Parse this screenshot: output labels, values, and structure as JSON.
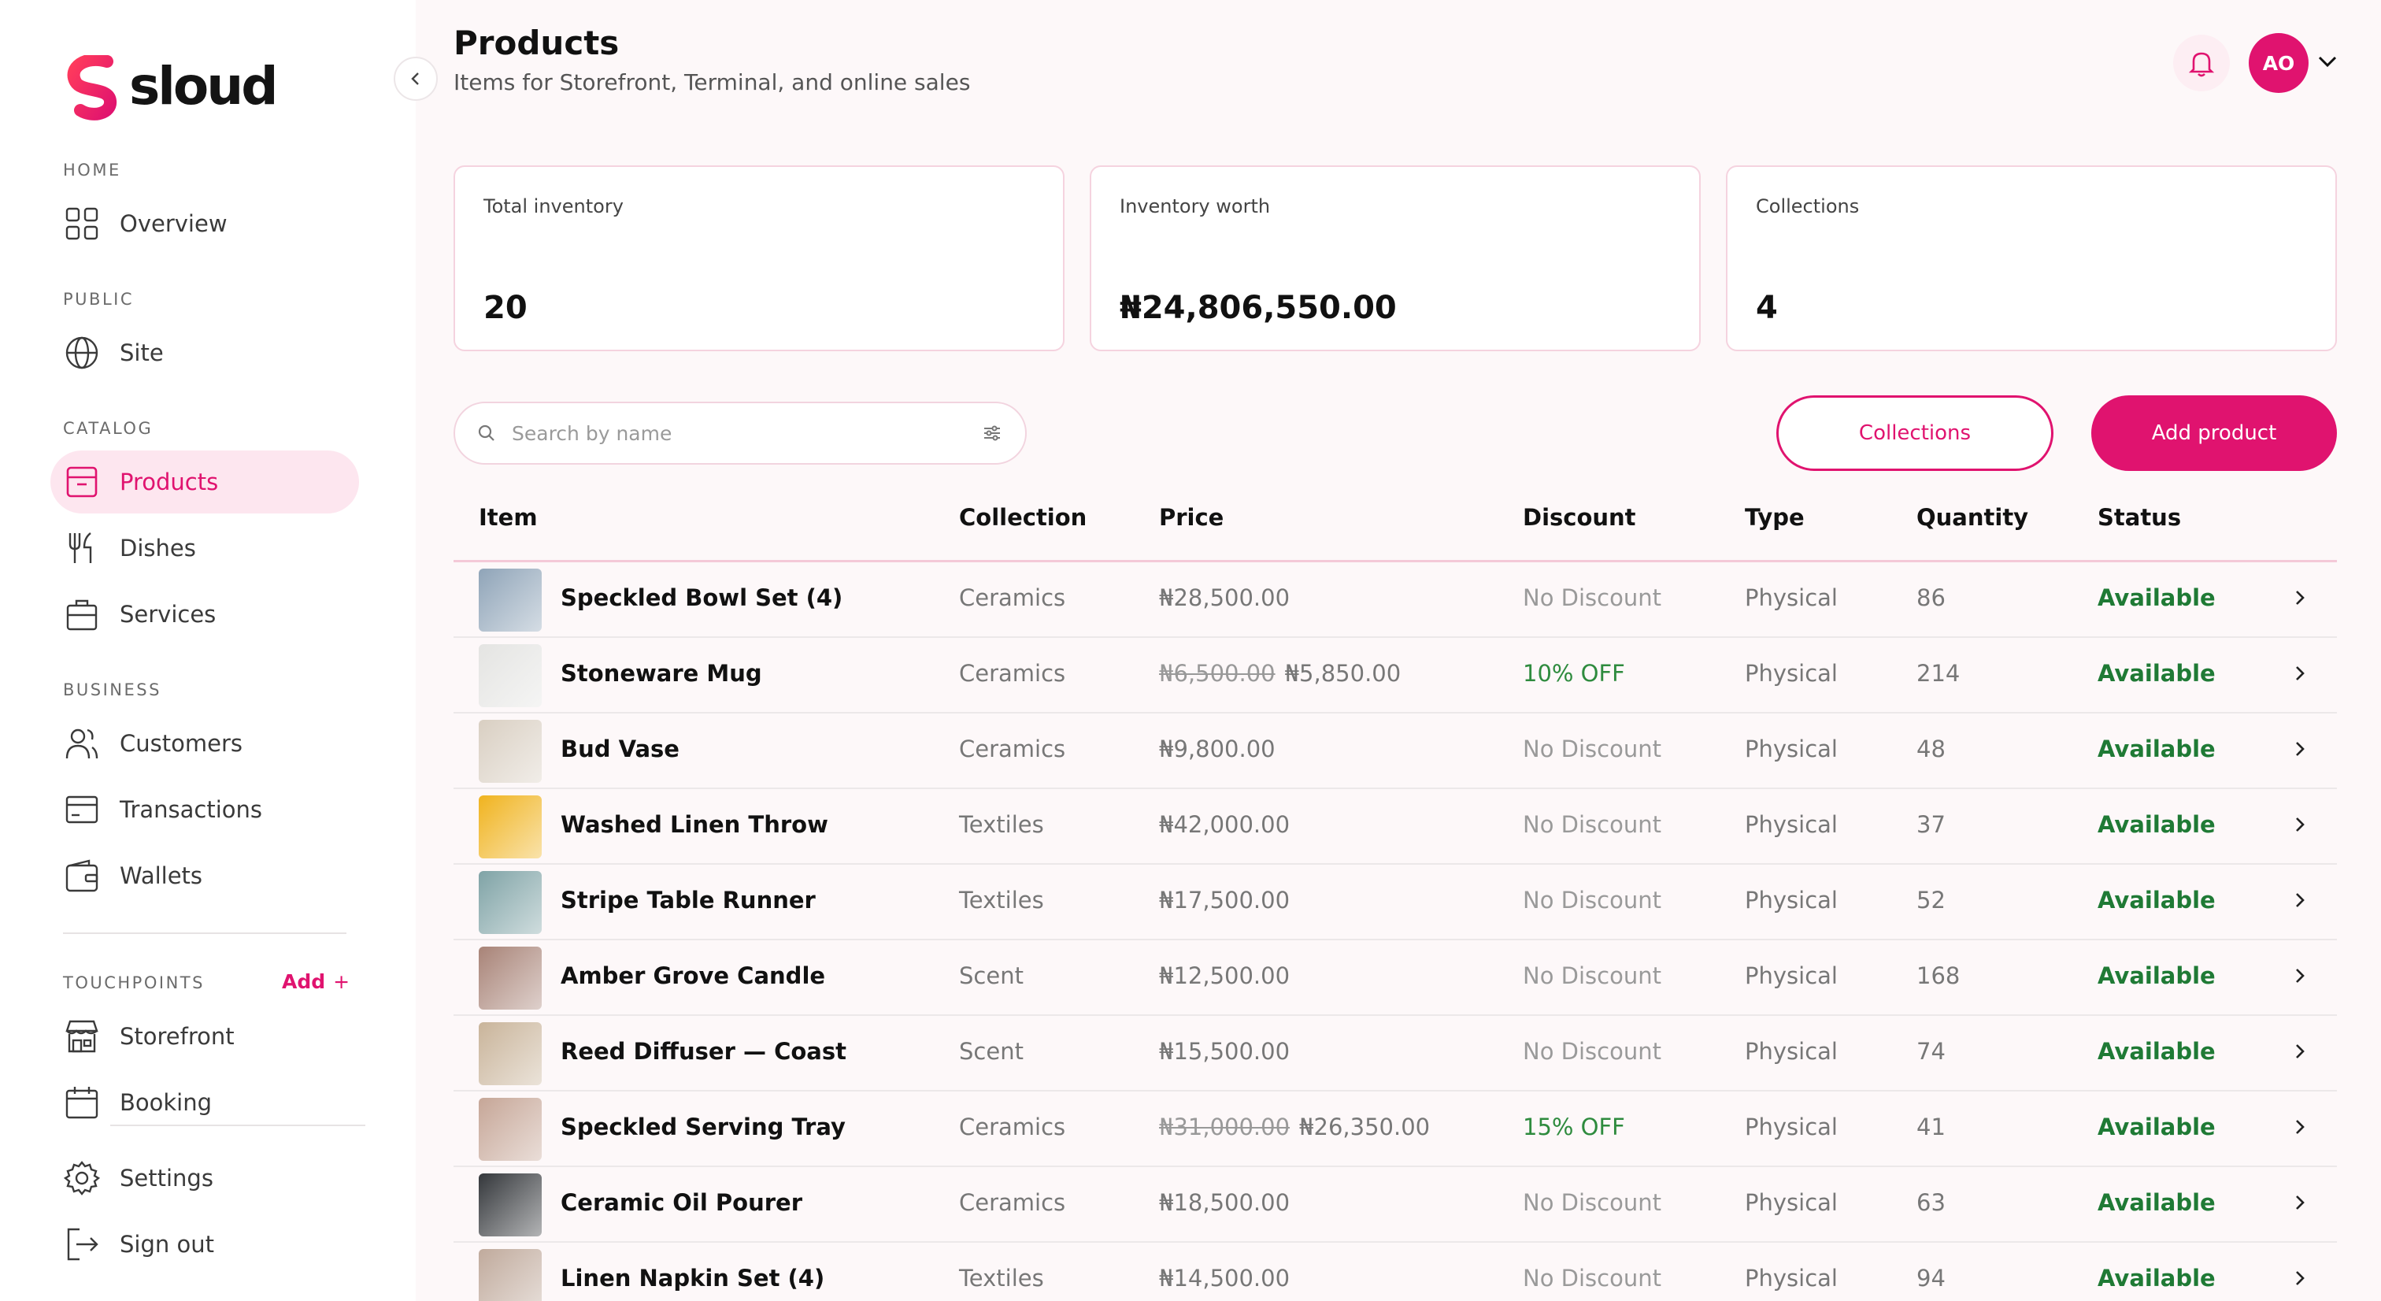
{
  "brand": {
    "name": "sloud",
    "color": "#e0136f"
  },
  "sidebar": {
    "sections": [
      {
        "label": "HOME"
      },
      {
        "label": "PUBLIC"
      },
      {
        "label": "CATALOG"
      },
      {
        "label": "BUSINESS"
      },
      {
        "label": "TOUCHPOINTS",
        "add_label": "Add"
      }
    ],
    "items": [
      {
        "label": "Overview",
        "icon": "grid-icon"
      },
      {
        "label": "Site",
        "icon": "globe-icon"
      },
      {
        "label": "Products",
        "icon": "box-icon",
        "active": true
      },
      {
        "label": "Dishes",
        "icon": "utensils-icon"
      },
      {
        "label": "Services",
        "icon": "briefcase-icon"
      },
      {
        "label": "Customers",
        "icon": "users-icon"
      },
      {
        "label": "Transactions",
        "icon": "card-icon"
      },
      {
        "label": "Wallets",
        "icon": "wallet-icon"
      },
      {
        "label": "Storefront",
        "icon": "store-icon"
      },
      {
        "label": "Booking",
        "icon": "calendar-icon"
      },
      {
        "label": "Settings",
        "icon": "gear-icon"
      },
      {
        "label": "Sign out",
        "icon": "logout-icon"
      }
    ]
  },
  "header": {
    "title": "Products",
    "subtitle": "Items for Storefront, Terminal, and online sales",
    "avatar_initials": "AO"
  },
  "stats": [
    {
      "label": "Total inventory",
      "value": "20"
    },
    {
      "label": "Inventory worth",
      "value": "₦24,806,550.00"
    },
    {
      "label": "Collections",
      "value": "4"
    }
  ],
  "toolbar": {
    "search_placeholder": "Search by name",
    "collections_label": "Collections",
    "add_label": "Add product"
  },
  "table": {
    "columns": [
      "Item",
      "Collection",
      "Price",
      "Discount",
      "Type",
      "Quantity",
      "Status"
    ],
    "rows": [
      {
        "name": "Speckled Bowl Set (4)",
        "collection": "Ceramics",
        "old_price": "",
        "price": "₦28,500.00",
        "discount": "No Discount",
        "type": "Physical",
        "qty": "86",
        "status": "Available",
        "thumb": "#8fa4b8"
      },
      {
        "name": "Stoneware Mug",
        "collection": "Ceramics",
        "old_price": "₦6,500.00",
        "price": "₦5,850.00",
        "discount": "10% OFF",
        "type": "Physical",
        "qty": "214",
        "status": "Available",
        "thumb": "#e4e4e2"
      },
      {
        "name": "Bud Vase",
        "collection": "Ceramics",
        "old_price": "",
        "price": "₦9,800.00",
        "discount": "No Discount",
        "type": "Physical",
        "qty": "48",
        "status": "Available",
        "thumb": "#d9cfc2"
      },
      {
        "name": "Washed Linen Throw",
        "collection": "Textiles",
        "old_price": "",
        "price": "₦42,000.00",
        "discount": "No Discount",
        "type": "Physical",
        "qty": "37",
        "status": "Available",
        "thumb": "#f0b31e"
      },
      {
        "name": "Stripe Table Runner",
        "collection": "Textiles",
        "old_price": "",
        "price": "₦17,500.00",
        "discount": "No Discount",
        "type": "Physical",
        "qty": "52",
        "status": "Available",
        "thumb": "#7fa3a6"
      },
      {
        "name": "Amber Grove Candle",
        "collection": "Scent",
        "old_price": "",
        "price": "₦12,500.00",
        "discount": "No Discount",
        "type": "Physical",
        "qty": "168",
        "status": "Available",
        "thumb": "#a88377"
      },
      {
        "name": "Reed Diffuser — Coast",
        "collection": "Scent",
        "old_price": "",
        "price": "₦15,500.00",
        "discount": "No Discount",
        "type": "Physical",
        "qty": "74",
        "status": "Available",
        "thumb": "#c9b49a"
      },
      {
        "name": "Speckled Serving Tray",
        "collection": "Ceramics",
        "old_price": "₦31,000.00",
        "price": "₦26,350.00",
        "discount": "15% OFF",
        "type": "Physical",
        "qty": "41",
        "status": "Available",
        "thumb": "#c6a697"
      },
      {
        "name": "Ceramic Oil Pourer",
        "collection": "Ceramics",
        "old_price": "",
        "price": "₦18,500.00",
        "discount": "No Discount",
        "type": "Physical",
        "qty": "63",
        "status": "Available",
        "thumb": "#34373b"
      },
      {
        "name": "Linen Napkin Set (4)",
        "collection": "Textiles",
        "old_price": "",
        "price": "₦14,500.00",
        "discount": "No Discount",
        "type": "Physical",
        "qty": "94",
        "status": "Available",
        "thumb": "#c0aa9c"
      }
    ]
  }
}
